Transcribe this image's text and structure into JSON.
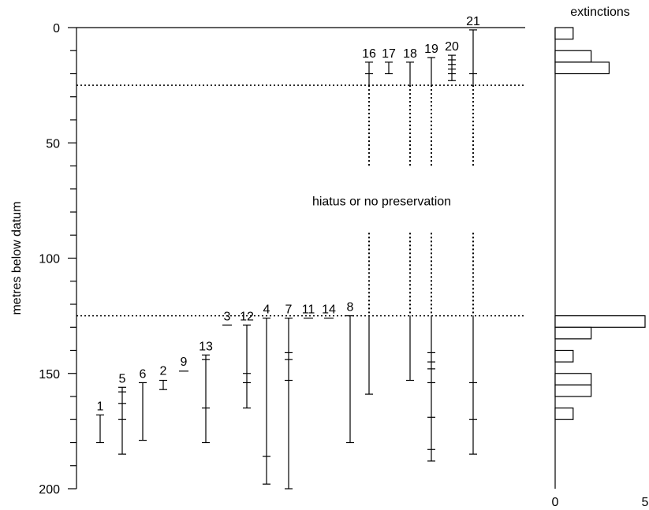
{
  "chart_data": [
    {
      "type": "range",
      "ylabel": "metres below datum",
      "ylim": [
        0,
        200
      ],
      "y_inverted": true,
      "yticks": [
        0,
        50,
        100,
        150,
        200
      ],
      "yminor_step": 10,
      "hiatus": {
        "label": "hiatus or no preservation",
        "boundary_lines": [
          25,
          125
        ],
        "gap_from": 60,
        "gap_to": 89
      },
      "ranges": [
        {
          "id": "1",
          "top": 168,
          "base": 180,
          "marks": [
            168,
            180
          ]
        },
        {
          "id": "5",
          "top": 156,
          "base": 185,
          "marks": [
            156,
            158,
            163,
            170,
            185
          ]
        },
        {
          "id": "6",
          "top": 154,
          "base": 179,
          "marks": [
            154,
            179
          ]
        },
        {
          "id": "2",
          "top": 153,
          "base": 157,
          "marks": [
            153,
            157
          ]
        },
        {
          "id": "9",
          "top": 149,
          "base": 149,
          "marks": [
            149
          ]
        },
        {
          "id": "13",
          "top": 142,
          "base": 180,
          "marks": [
            142,
            144,
            165,
            180
          ]
        },
        {
          "id": "3",
          "top": 129,
          "base": 129,
          "marks": [
            129
          ]
        },
        {
          "id": "12",
          "top": 129,
          "base": 165,
          "marks": [
            129,
            150,
            154,
            165
          ]
        },
        {
          "id": "4",
          "top": 126,
          "base": 198,
          "marks": [
            126,
            186,
            198
          ]
        },
        {
          "id": "7",
          "top": 126,
          "base": 200,
          "marks": [
            126,
            141,
            144,
            153,
            200
          ]
        },
        {
          "id": "11",
          "top": 126,
          "base": 126,
          "marks": [
            126
          ]
        },
        {
          "id": "14",
          "top": 126,
          "base": 126,
          "marks": [
            126
          ]
        },
        {
          "id": "8",
          "top": 125,
          "base": 180,
          "marks": [
            125,
            180
          ]
        },
        {
          "id": "16",
          "top": 15,
          "base": 159,
          "marks": [
            15,
            20,
            159
          ]
        },
        {
          "id": "17",
          "top": 15,
          "base": 20,
          "marks": [
            15,
            20
          ]
        },
        {
          "id": "18",
          "top": 15,
          "base": 153,
          "marks": [
            15,
            153
          ]
        },
        {
          "id": "19",
          "top": 13,
          "base": 188,
          "marks": [
            13,
            141,
            145,
            148,
            154,
            169,
            183,
            188
          ]
        },
        {
          "id": "20",
          "top": 12,
          "base": 23,
          "marks": [
            12,
            14,
            16,
            18,
            20,
            23
          ]
        },
        {
          "id": "21",
          "top": 1,
          "base": 185,
          "marks": [
            1,
            20,
            154,
            170,
            185
          ]
        }
      ]
    },
    {
      "type": "bar",
      "orientation": "horizontal",
      "title": "extinctions",
      "xlim": [
        0,
        5
      ],
      "xticks": [
        0,
        5
      ],
      "bins": [
        {
          "from": 0,
          "to": 5,
          "value": 1
        },
        {
          "from": 10,
          "to": 15,
          "value": 2
        },
        {
          "from": 15,
          "to": 20,
          "value": 3
        },
        {
          "from": 125,
          "to": 130,
          "value": 5
        },
        {
          "from": 130,
          "to": 135,
          "value": 2
        },
        {
          "from": 140,
          "to": 145,
          "value": 1
        },
        {
          "from": 150,
          "to": 155,
          "value": 2
        },
        {
          "from": 155,
          "to": 160,
          "value": 2
        },
        {
          "from": 165,
          "to": 170,
          "value": 1
        }
      ]
    }
  ]
}
